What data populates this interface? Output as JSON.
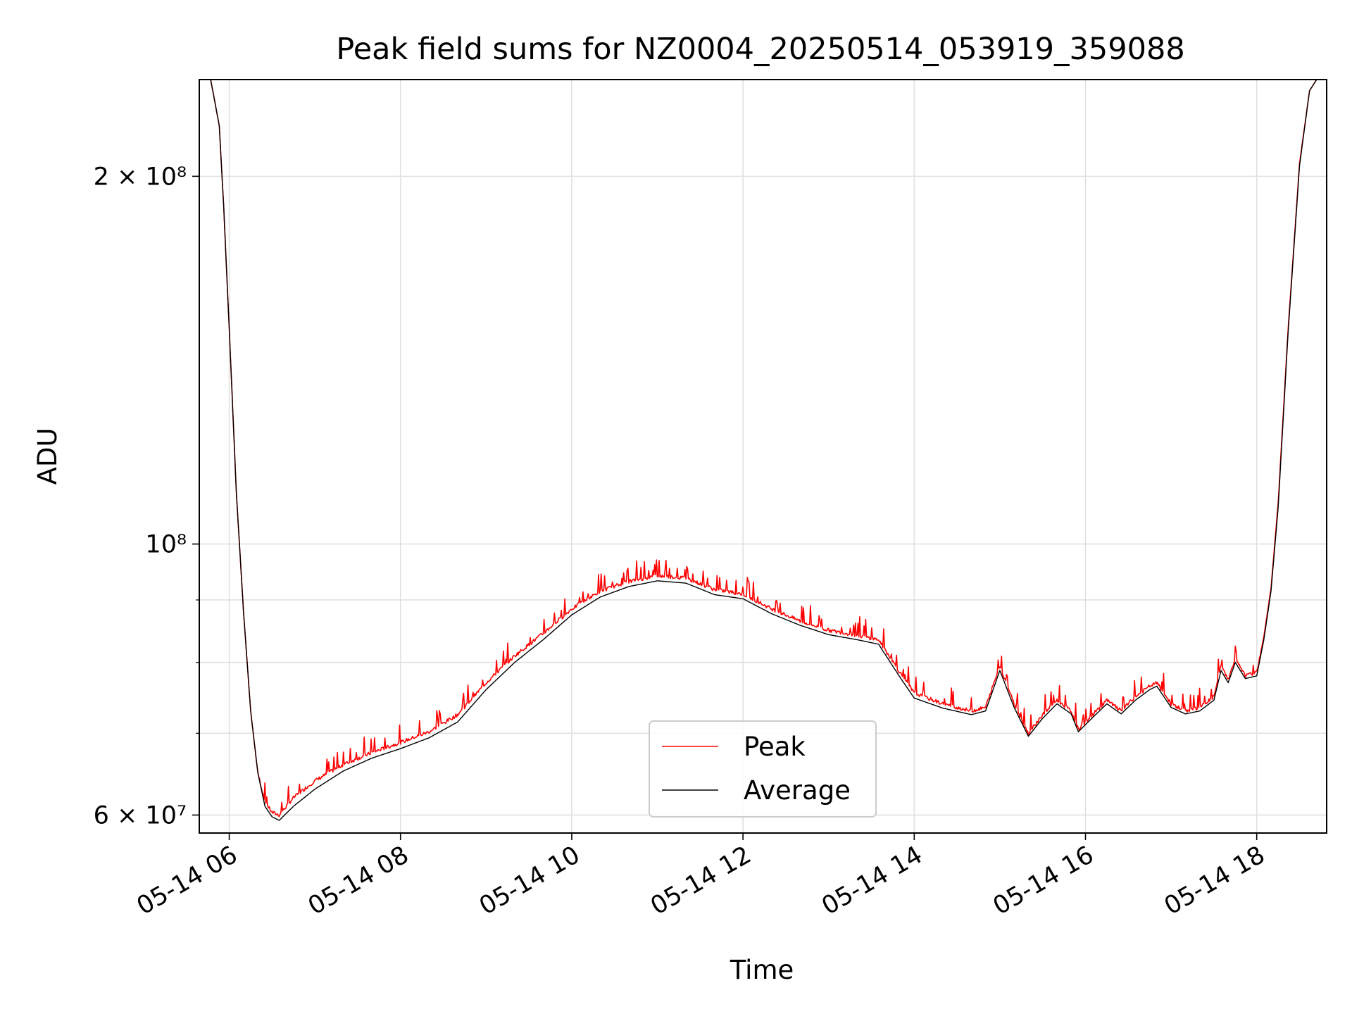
{
  "chart_data": {
    "type": "line",
    "title": "Peak field sums for NZ0004_20250514_053919_359088",
    "xlabel": "Time",
    "ylabel": "ADU",
    "y_scale": "log",
    "xlim": [
      "2025-05-14 05:39",
      "2025-05-14 18:49"
    ],
    "ylim": [
      58000000,
      240000000
    ],
    "grid": true,
    "legend_position": "lower center",
    "x_ticks": [
      "05-14 06",
      "05-14 08",
      "05-14 10",
      "05-14 12",
      "05-14 14",
      "05-14 16",
      "05-14 18"
    ],
    "y_ticks": [
      {
        "value": 60000000,
        "label": "6 × 10⁷"
      },
      {
        "value": 100000000,
        "label": "10⁸"
      },
      {
        "value": 200000000,
        "label": "2 × 10⁸"
      }
    ],
    "series": [
      {
        "name": "Peak",
        "color": "#ff0000",
        "points": [
          [
            "05:39",
            240000000
          ],
          [
            "05:47",
            240000000
          ],
          [
            "05:53",
            220000000
          ],
          [
            "05:56",
            190000000
          ],
          [
            "06:00",
            150000000
          ],
          [
            "06:05",
            110000000
          ],
          [
            "06:10",
            88000000
          ],
          [
            "06:15",
            73000000
          ],
          [
            "06:20",
            65000000
          ],
          [
            "06:25",
            61500000
          ],
          [
            "06:30",
            60300000
          ],
          [
            "06:35",
            60000000
          ],
          [
            "06:45",
            62000000
          ],
          [
            "07:00",
            64000000
          ],
          [
            "07:20",
            66000000
          ],
          [
            "07:40",
            67500000
          ],
          [
            "08:00",
            68800000
          ],
          [
            "08:20",
            70200000
          ],
          [
            "08:40",
            72500000
          ],
          [
            "09:00",
            77000000
          ],
          [
            "09:20",
            81000000
          ],
          [
            "09:40",
            84500000
          ],
          [
            "10:00",
            88500000
          ],
          [
            "10:20",
            91500000
          ],
          [
            "10:40",
            93200000
          ],
          [
            "11:00",
            94200000
          ],
          [
            "11:20",
            93800000
          ],
          [
            "11:40",
            91800000
          ],
          [
            "12:00",
            91000000
          ],
          [
            "12:20",
            88500000
          ],
          [
            "12:40",
            86500000
          ],
          [
            "13:00",
            85000000
          ],
          [
            "13:20",
            84200000
          ],
          [
            "13:35",
            83500000
          ],
          [
            "13:50",
            78500000
          ],
          [
            "14:00",
            75500000
          ],
          [
            "14:20",
            74000000
          ],
          [
            "14:40",
            73000000
          ],
          [
            "14:50",
            73500000
          ],
          [
            "15:00",
            79500000
          ],
          [
            "15:10",
            74000000
          ],
          [
            "15:20",
            70000000
          ],
          [
            "15:30",
            72500000
          ],
          [
            "15:40",
            74500000
          ],
          [
            "15:50",
            73000000
          ],
          [
            "15:55",
            70500000
          ],
          [
            "16:05",
            72500000
          ],
          [
            "16:15",
            74500000
          ],
          [
            "16:25",
            73000000
          ],
          [
            "16:35",
            75000000
          ],
          [
            "16:45",
            76500000
          ],
          [
            "16:50",
            77000000
          ],
          [
            "17:00",
            74000000
          ],
          [
            "17:10",
            73000000
          ],
          [
            "17:20",
            73500000
          ],
          [
            "17:30",
            75000000
          ],
          [
            "17:35",
            79500000
          ],
          [
            "17:40",
            77500000
          ],
          [
            "17:45",
            80500000
          ],
          [
            "17:52",
            78000000
          ],
          [
            "18:00",
            78500000
          ],
          [
            "18:05",
            84000000
          ],
          [
            "18:10",
            92000000
          ],
          [
            "18:15",
            108000000
          ],
          [
            "18:22",
            150000000
          ],
          [
            "18:30",
            205000000
          ],
          [
            "18:37",
            235000000
          ],
          [
            "18:42",
            240000000
          ],
          [
            "18:49",
            240000000
          ]
        ]
      },
      {
        "name": "Average",
        "color": "#000000",
        "points": [
          [
            "05:39",
            240000000
          ],
          [
            "05:47",
            240000000
          ],
          [
            "05:53",
            220000000
          ],
          [
            "05:56",
            190000000
          ],
          [
            "06:00",
            150000000
          ],
          [
            "06:05",
            110000000
          ],
          [
            "06:10",
            88000000
          ],
          [
            "06:15",
            73000000
          ],
          [
            "06:20",
            65000000
          ],
          [
            "06:25",
            61000000
          ],
          [
            "06:30",
            59800000
          ],
          [
            "06:35",
            59400000
          ],
          [
            "06:45",
            61000000
          ],
          [
            "07:00",
            63000000
          ],
          [
            "07:20",
            65200000
          ],
          [
            "07:40",
            66800000
          ],
          [
            "08:00",
            68000000
          ],
          [
            "08:20",
            69400000
          ],
          [
            "08:40",
            71500000
          ],
          [
            "09:00",
            76000000
          ],
          [
            "09:20",
            80000000
          ],
          [
            "09:40",
            83500000
          ],
          [
            "10:00",
            87500000
          ],
          [
            "10:20",
            90500000
          ],
          [
            "10:40",
            92300000
          ],
          [
            "11:00",
            93300000
          ],
          [
            "11:20",
            92900000
          ],
          [
            "11:40",
            90900000
          ],
          [
            "12:00",
            90200000
          ],
          [
            "12:20",
            87700000
          ],
          [
            "12:40",
            85800000
          ],
          [
            "13:00",
            84300000
          ],
          [
            "13:20",
            83500000
          ],
          [
            "13:35",
            82800000
          ],
          [
            "13:50",
            77800000
          ],
          [
            "14:00",
            74800000
          ],
          [
            "14:20",
            73400000
          ],
          [
            "14:40",
            72500000
          ],
          [
            "14:50",
            73000000
          ],
          [
            "15:00",
            78800000
          ],
          [
            "15:10",
            73500000
          ],
          [
            "15:20",
            69600000
          ],
          [
            "15:30",
            72000000
          ],
          [
            "15:40",
            74000000
          ],
          [
            "15:50",
            72600000
          ],
          [
            "15:55",
            70200000
          ],
          [
            "16:05",
            72100000
          ],
          [
            "16:15",
            74000000
          ],
          [
            "16:25",
            72600000
          ],
          [
            "16:35",
            74500000
          ],
          [
            "16:45",
            76000000
          ],
          [
            "16:50",
            76500000
          ],
          [
            "17:00",
            73500000
          ],
          [
            "17:10",
            72600000
          ],
          [
            "17:20",
            73000000
          ],
          [
            "17:30",
            74500000
          ],
          [
            "17:35",
            78800000
          ],
          [
            "17:40",
            77000000
          ],
          [
            "17:45",
            80000000
          ],
          [
            "17:52",
            77600000
          ],
          [
            "18:00",
            78000000
          ],
          [
            "18:05",
            83500000
          ],
          [
            "18:10",
            91500000
          ],
          [
            "18:15",
            107000000
          ],
          [
            "18:22",
            149000000
          ],
          [
            "18:30",
            204000000
          ],
          [
            "18:37",
            235000000
          ],
          [
            "18:42",
            240000000
          ],
          [
            "18:49",
            240000000
          ]
        ]
      }
    ]
  }
}
